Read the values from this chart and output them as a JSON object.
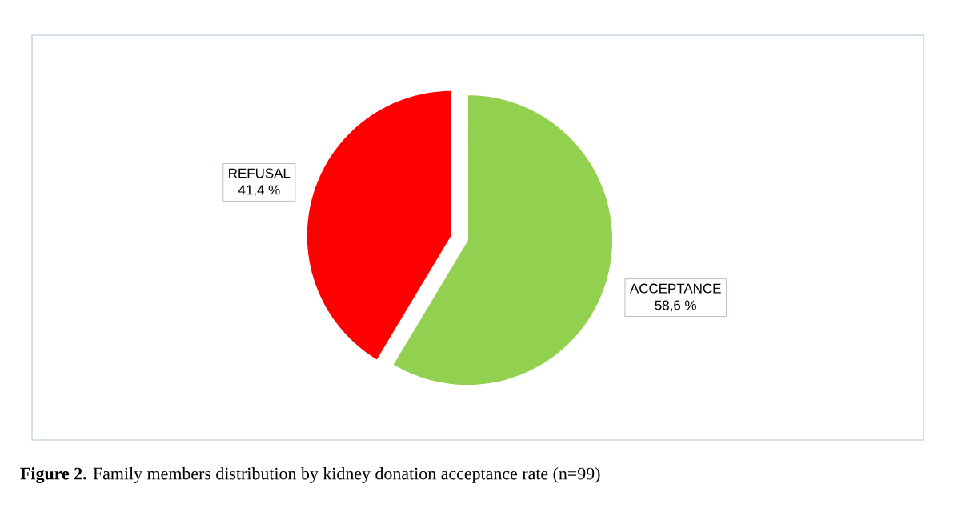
{
  "chart_data": {
    "type": "pie",
    "categories": [
      "ACCEPTANCE",
      "REFUSAL"
    ],
    "values": [
      58.6,
      41.4
    ],
    "colors": [
      "#92d050",
      "#ff0000"
    ],
    "value_labels": [
      "58,6 %",
      "41,4 %"
    ],
    "annotations": [
      "**Figure 2.** Family members distribution by kidney donation acceptance rate (n=99)"
    ]
  }
}
